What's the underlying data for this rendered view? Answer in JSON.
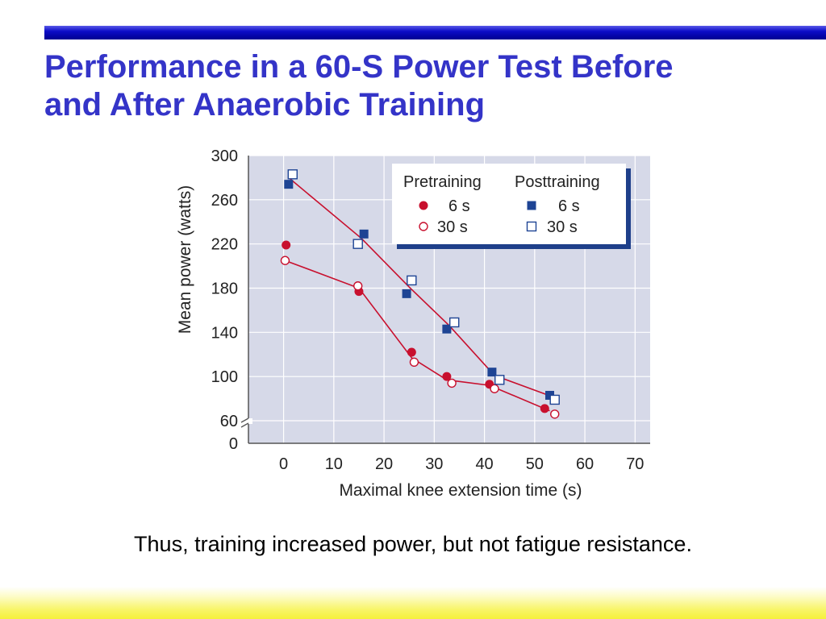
{
  "slide": {
    "title_line1": "Performance in a 60-S Power Test Before",
    "title_line2": "and After Anaerobic Training",
    "caption": "Thus, training increased power, but not fatigue resistance."
  },
  "colors": {
    "title": "#3434c8",
    "pretraining": "#c8102e",
    "posttraining": "#1e4494",
    "plot_background": "#d6d9e8"
  },
  "chart_data": {
    "type": "scatter",
    "xlabel": "Maximal knee extension time (s)",
    "ylabel": "Mean power (watts)",
    "xlim": [
      -7,
      73
    ],
    "ylim": [
      0,
      300
    ],
    "axis_break": "y between 0 and 60",
    "x_ticks": [
      0,
      10,
      20,
      30,
      40,
      50,
      60,
      70
    ],
    "y_ticks": [
      0,
      60,
      100,
      140,
      180,
      220,
      260,
      300
    ],
    "grid": true,
    "legend": {
      "position": "top-right",
      "headers": [
        "Pretraining",
        "Posttraining"
      ],
      "entries": [
        "6 s",
        "30 s",
        "6 s",
        "30 s"
      ]
    },
    "series": [
      {
        "name": "Pretraining 6 s",
        "group": "pre",
        "marker": "filled-circle",
        "x": [
          0.5,
          15,
          25.5,
          32.5,
          41,
          52
        ],
        "y": [
          219,
          177,
          122,
          100,
          93,
          71
        ]
      },
      {
        "name": "Pretraining 30 s",
        "group": "pre",
        "marker": "open-circle",
        "x": [
          0.3,
          14.8,
          26,
          33.5,
          42,
          54
        ],
        "y": [
          205,
          182,
          113,
          94,
          89,
          66
        ]
      },
      {
        "name": "Posttraining 6 s",
        "group": "post",
        "marker": "filled-square",
        "x": [
          1,
          16,
          24.5,
          32.5,
          41.5,
          53
        ],
        "y": [
          274,
          229,
          175,
          143,
          104,
          83
        ]
      },
      {
        "name": "Posttraining 30 s",
        "group": "post",
        "marker": "open-square",
        "x": [
          1.8,
          14.8,
          25.5,
          34,
          43,
          54
        ],
        "y": [
          283,
          220,
          187,
          149,
          97,
          79
        ]
      }
    ],
    "fit_lines": [
      {
        "group": "pre",
        "x": [
          0.3,
          15,
          25.5,
          32.5,
          41,
          53
        ],
        "y": [
          205,
          180,
          117,
          97,
          92,
          69
        ]
      },
      {
        "group": "post",
        "x": [
          1,
          15.5,
          25,
          33,
          42,
          54
        ],
        "y": [
          280,
          225,
          181,
          146,
          101,
          81
        ]
      }
    ]
  }
}
